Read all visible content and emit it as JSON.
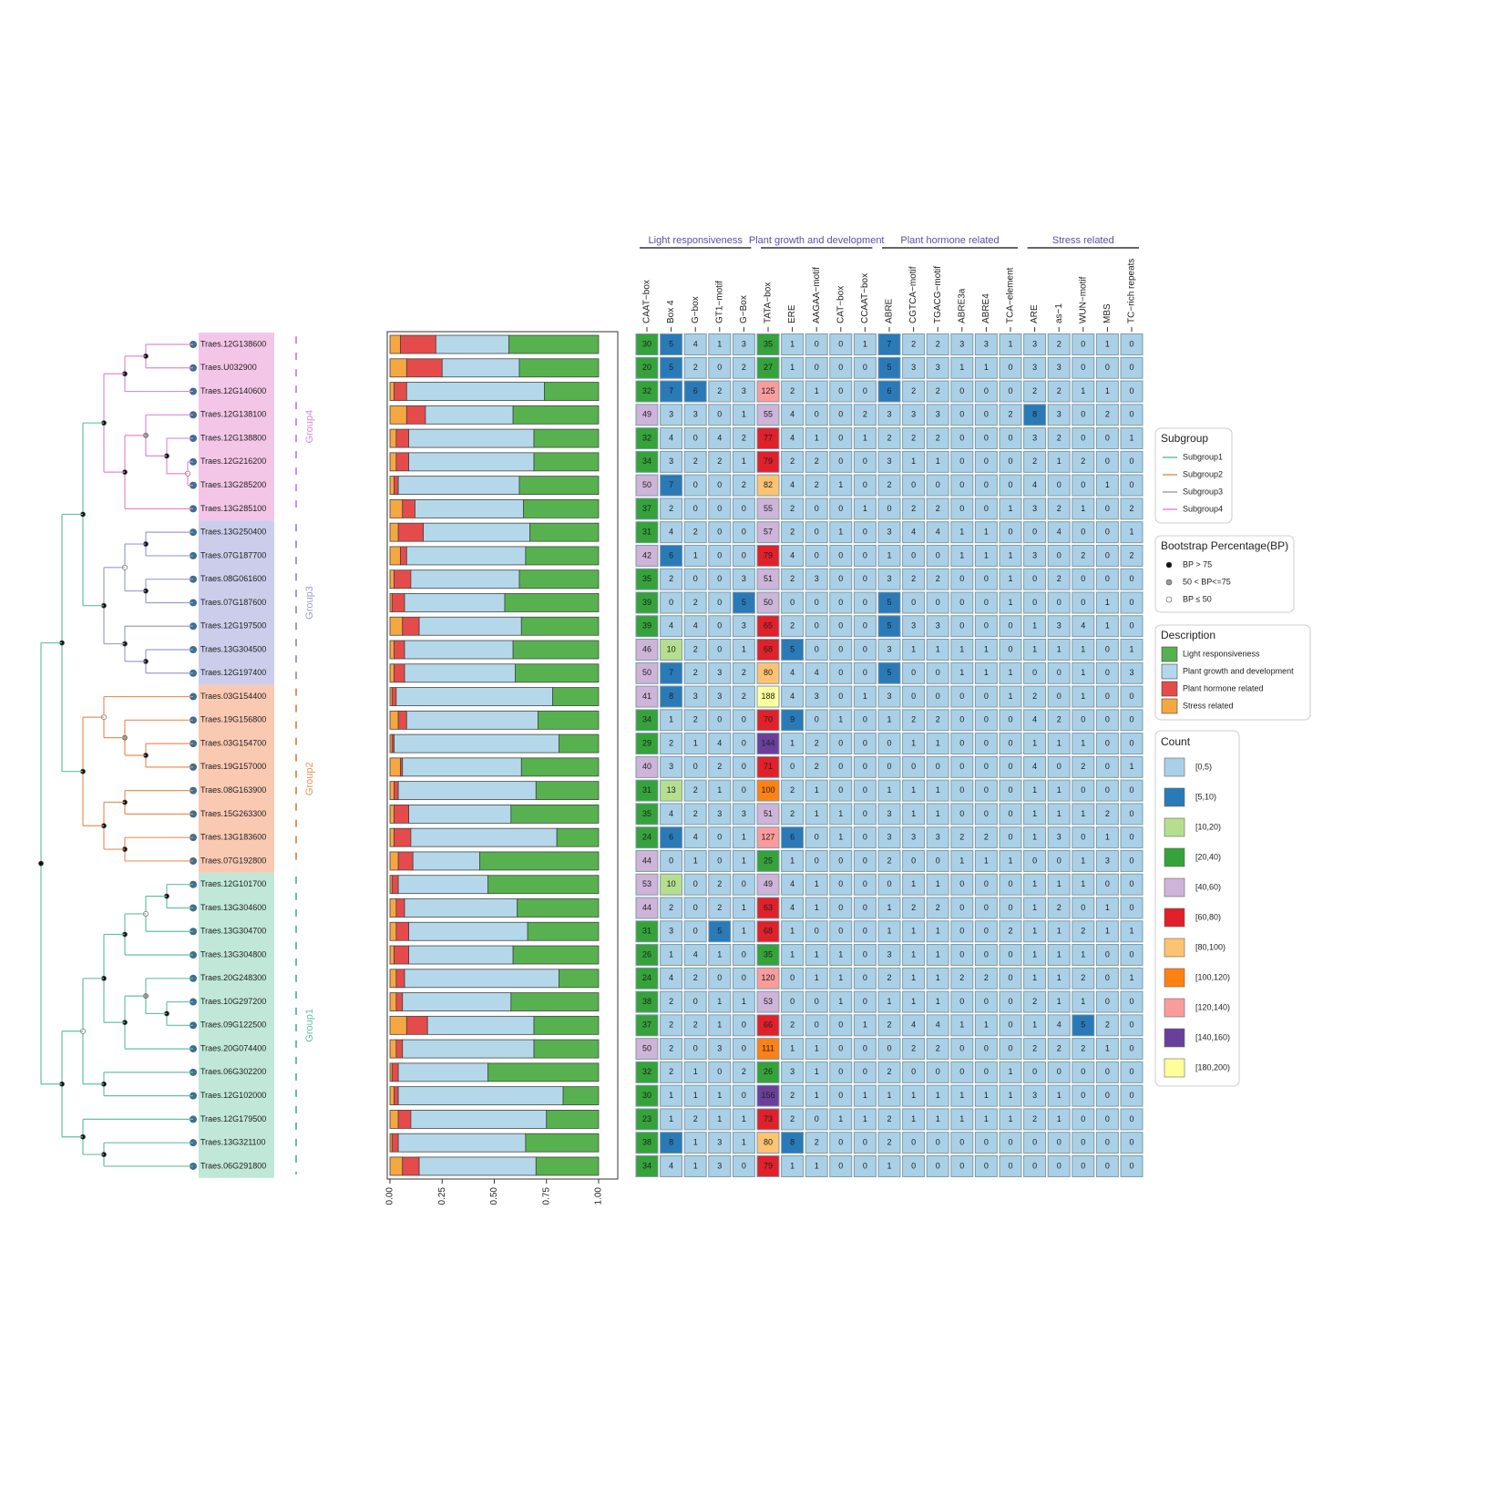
{
  "chart_data": {
    "type": "heatmap",
    "genes": [
      "Traes.12G138600",
      "Traes.U032900",
      "Traes.12G140600",
      "Traes.12G138100",
      "Traes.12G138800",
      "Traes.12G216200",
      "Traes.13G285200",
      "Traes.13G285100",
      "Traes.13G250400",
      "Traes.07G187700",
      "Traes.08G061600",
      "Traes.07G187600",
      "Traes.12G197500",
      "Traes.13G304500",
      "Traes.12G197400",
      "Traes.03G154400",
      "Traes.19G156800",
      "Traes.03G154700",
      "Traes.19G157000",
      "Traes.08G163900",
      "Traes.15G263300",
      "Traes.13G183600",
      "Traes.07G192800",
      "Traes.12G101700",
      "Traes.13G304600",
      "Traes.13G304700",
      "Traes.13G304800",
      "Traes.20G248300",
      "Traes.10G297200",
      "Traes.09G122500",
      "Traes.20G074400",
      "Traes.06G302200",
      "Traes.12G102000",
      "Traes.12G179500",
      "Traes.13G321100",
      "Traes.06G291800"
    ],
    "groups": [
      {
        "name": "Group4",
        "color": "#e08ad0",
        "band": "#f3c6e8"
      },
      {
        "name": "Group3",
        "color": "#9b9cd2",
        "band": "#cbcdea"
      },
      {
        "name": "Group2",
        "color": "#e8915a",
        "band": "#f9c9b2"
      },
      {
        "name": "Group1",
        "color": "#63c2a0",
        "band": "#c0e7d7"
      }
    ],
    "bar": {
      "legend_title": "Description",
      "series": [
        {
          "name": "Stress related",
          "color": "#f5a742",
          "values": [
            0.05,
            0.08,
            0.02,
            0.08,
            0.03,
            0.03,
            0.02,
            0.06,
            0.04,
            0.05,
            0.02,
            0.01,
            0.06,
            0.02,
            0.02,
            0.01,
            0.04,
            0.01,
            0.05,
            0.02,
            0.02,
            0.02,
            0.04,
            0.01,
            0.03,
            0.03,
            0.02,
            0.03,
            0.03,
            0.08,
            0.03,
            0.01,
            0.02,
            0.04,
            0.01,
            0.06
          ]
        },
        {
          "name": "Plant hormone related",
          "color": "#e54b4b",
          "values": [
            0.17,
            0.17,
            0.06,
            0.09,
            0.06,
            0.06,
            0.02,
            0.06,
            0.12,
            0.03,
            0.08,
            0.06,
            0.08,
            0.05,
            0.05,
            0.02,
            0.04,
            0.01,
            0.01,
            0.02,
            0.07,
            0.08,
            0.07,
            0.03,
            0.04,
            0.06,
            0.07,
            0.04,
            0.03,
            0.1,
            0.03,
            0.03,
            0.02,
            0.06,
            0.03,
            0.08
          ]
        },
        {
          "name": "Plant growth and development",
          "color": "#b4d8ea",
          "values": [
            0.35,
            0.37,
            0.66,
            0.42,
            0.6,
            0.6,
            0.58,
            0.52,
            0.51,
            0.57,
            0.52,
            0.48,
            0.49,
            0.52,
            0.53,
            0.75,
            0.63,
            0.79,
            0.57,
            0.66,
            0.49,
            0.7,
            0.32,
            0.43,
            0.54,
            0.57,
            0.5,
            0.74,
            0.52,
            0.51,
            0.63,
            0.43,
            0.79,
            0.65,
            0.61,
            0.56
          ]
        },
        {
          "name": "Light responsiveness",
          "color": "#58b14f",
          "values": [
            0.43,
            0.38,
            0.26,
            0.41,
            0.31,
            0.31,
            0.38,
            0.36,
            0.33,
            0.35,
            0.38,
            0.45,
            0.37,
            0.41,
            0.4,
            0.22,
            0.29,
            0.19,
            0.37,
            0.3,
            0.42,
            0.2,
            0.57,
            0.53,
            0.39,
            0.34,
            0.41,
            0.19,
            0.42,
            0.31,
            0.31,
            0.53,
            0.17,
            0.25,
            0.35,
            0.3
          ]
        }
      ],
      "xlim": [
        0,
        1
      ],
      "xticks": [
        {
          "value": 0,
          "label": "0.00"
        },
        {
          "value": 0.25,
          "label": "0.25"
        },
        {
          "value": 0.5,
          "label": "0.50"
        },
        {
          "value": 0.75,
          "label": "0.75"
        },
        {
          "value": 1,
          "label": "1.00"
        }
      ]
    },
    "heatmap": {
      "column_groups": [
        "Light responsiveness",
        "Plant growth and development",
        "Plant hormone related",
        "Stress related"
      ],
      "columns": [
        "CAAT−box",
        "Box 4",
        "G−box",
        "GT1−motif",
        "G−Box",
        "TATA−box",
        "ERE",
        "AAGAA−motif",
        "CAT−box",
        "CCAAT−box",
        "ABRE",
        "CGTCA−motif",
        "TGACG−motif",
        "ABRE3a",
        "ABRE4",
        "TCA−element",
        "ARE",
        "as−1",
        "WUN−motif",
        "MBS",
        "TC−rich repeats"
      ],
      "values": [
        [
          30,
          5,
          4,
          1,
          3,
          35,
          1,
          0,
          0,
          1,
          7,
          2,
          2,
          3,
          3,
          1,
          3,
          2,
          0,
          1,
          0
        ],
        [
          20,
          5,
          2,
          0,
          2,
          27,
          1,
          0,
          0,
          0,
          5,
          3,
          3,
          1,
          1,
          0,
          3,
          3,
          0,
          0,
          0
        ],
        [
          32,
          7,
          6,
          2,
          3,
          125,
          2,
          1,
          0,
          0,
          6,
          2,
          2,
          0,
          0,
          0,
          2,
          2,
          1,
          1,
          0
        ],
        [
          49,
          3,
          3,
          0,
          1,
          55,
          4,
          0,
          0,
          2,
          3,
          3,
          3,
          0,
          0,
          2,
          8,
          3,
          0,
          2,
          0
        ],
        [
          32,
          4,
          0,
          4,
          2,
          77,
          4,
          1,
          0,
          1,
          2,
          2,
          2,
          0,
          0,
          0,
          3,
          2,
          0,
          0,
          1
        ],
        [
          34,
          3,
          2,
          2,
          1,
          79,
          2,
          2,
          0,
          0,
          3,
          1,
          1,
          0,
          0,
          0,
          2,
          1,
          2,
          0,
          0
        ],
        [
          50,
          7,
          0,
          0,
          2,
          82,
          4,
          2,
          1,
          0,
          2,
          0,
          0,
          0,
          0,
          0,
          4,
          0,
          0,
          1,
          0
        ],
        [
          37,
          2,
          0,
          0,
          0,
          55,
          2,
          0,
          0,
          1,
          0,
          2,
          2,
          0,
          0,
          1,
          3,
          2,
          1,
          0,
          2
        ],
        [
          31,
          4,
          2,
          0,
          0,
          57,
          2,
          0,
          1,
          0,
          3,
          4,
          4,
          1,
          1,
          0,
          0,
          4,
          0,
          0,
          1
        ],
        [
          42,
          6,
          1,
          0,
          0,
          79,
          4,
          0,
          0,
          0,
          1,
          0,
          0,
          1,
          1,
          1,
          3,
          0,
          2,
          0,
          2
        ],
        [
          35,
          2,
          0,
          0,
          3,
          51,
          2,
          3,
          0,
          0,
          3,
          2,
          2,
          0,
          0,
          1,
          0,
          2,
          0,
          0,
          0
        ],
        [
          39,
          0,
          2,
          0,
          5,
          50,
          0,
          0,
          0,
          0,
          5,
          0,
          0,
          0,
          0,
          1,
          0,
          0,
          0,
          1,
          0
        ],
        [
          39,
          4,
          4,
          0,
          3,
          65,
          2,
          0,
          0,
          0,
          5,
          3,
          3,
          0,
          0,
          0,
          1,
          3,
          4,
          1,
          0
        ],
        [
          46,
          10,
          2,
          0,
          1,
          68,
          5,
          0,
          0,
          0,
          3,
          1,
          1,
          1,
          1,
          0,
          1,
          1,
          1,
          0,
          1
        ],
        [
          50,
          7,
          2,
          3,
          2,
          80,
          4,
          4,
          0,
          0,
          5,
          0,
          0,
          1,
          1,
          1,
          0,
          0,
          1,
          0,
          3
        ],
        [
          41,
          8,
          3,
          3,
          2,
          188,
          4,
          3,
          0,
          1,
          3,
          0,
          0,
          0,
          0,
          1,
          2,
          0,
          1,
          0,
          0
        ],
        [
          34,
          1,
          2,
          0,
          0,
          70,
          9,
          0,
          1,
          0,
          1,
          2,
          2,
          0,
          0,
          0,
          4,
          2,
          0,
          0,
          0
        ],
        [
          29,
          2,
          1,
          4,
          0,
          144,
          1,
          2,
          0,
          0,
          0,
          1,
          1,
          0,
          0,
          0,
          1,
          1,
          1,
          0,
          0
        ],
        [
          40,
          3,
          0,
          2,
          0,
          71,
          0,
          2,
          0,
          0,
          0,
          0,
          0,
          0,
          0,
          0,
          4,
          0,
          2,
          0,
          1
        ],
        [
          31,
          13,
          2,
          1,
          0,
          100,
          2,
          1,
          0,
          0,
          1,
          1,
          1,
          0,
          0,
          0,
          1,
          1,
          0,
          0,
          0
        ],
        [
          35,
          4,
          2,
          3,
          3,
          51,
          2,
          1,
          1,
          0,
          3,
          1,
          1,
          0,
          0,
          0,
          1,
          1,
          1,
          2,
          0
        ],
        [
          24,
          6,
          4,
          0,
          1,
          127,
          6,
          0,
          1,
          0,
          3,
          3,
          3,
          2,
          2,
          0,
          1,
          3,
          0,
          1,
          0
        ],
        [
          44,
          0,
          1,
          0,
          1,
          25,
          1,
          0,
          0,
          0,
          2,
          0,
          0,
          1,
          1,
          1,
          0,
          0,
          1,
          3,
          0
        ],
        [
          53,
          10,
          0,
          2,
          0,
          49,
          4,
          1,
          0,
          0,
          0,
          1,
          1,
          0,
          0,
          0,
          1,
          1,
          1,
          0,
          0
        ],
        [
          44,
          2,
          0,
          2,
          1,
          63,
          4,
          1,
          0,
          0,
          1,
          2,
          2,
          0,
          0,
          0,
          1,
          2,
          0,
          1,
          0
        ],
        [
          31,
          3,
          0,
          5,
          1,
          68,
          1,
          0,
          0,
          0,
          1,
          1,
          1,
          0,
          0,
          2,
          1,
          1,
          2,
          1,
          1
        ],
        [
          26,
          1,
          4,
          1,
          0,
          35,
          1,
          1,
          1,
          0,
          3,
          1,
          1,
          0,
          0,
          0,
          1,
          1,
          1,
          0,
          0
        ],
        [
          24,
          4,
          2,
          0,
          0,
          120,
          0,
          1,
          1,
          0,
          2,
          1,
          1,
          2,
          2,
          0,
          1,
          1,
          2,
          0,
          1
        ],
        [
          38,
          2,
          0,
          1,
          1,
          53,
          0,
          0,
          1,
          0,
          1,
          1,
          1,
          0,
          0,
          0,
          2,
          1,
          1,
          0,
          0
        ],
        [
          37,
          2,
          2,
          1,
          0,
          66,
          2,
          0,
          0,
          1,
          2,
          4,
          4,
          1,
          1,
          0,
          1,
          4,
          5,
          2,
          0
        ],
        [
          50,
          2,
          0,
          3,
          0,
          111,
          1,
          1,
          0,
          0,
          0,
          2,
          2,
          0,
          0,
          0,
          2,
          2,
          2,
          1,
          0
        ],
        [
          32,
          2,
          1,
          0,
          2,
          26,
          3,
          1,
          0,
          0,
          2,
          0,
          0,
          0,
          0,
          1,
          0,
          0,
          0,
          0,
          0
        ],
        [
          30,
          1,
          1,
          1,
          0,
          156,
          2,
          1,
          0,
          1,
          1,
          1,
          1,
          1,
          1,
          1,
          3,
          1,
          0,
          0,
          0
        ],
        [
          23,
          1,
          2,
          1,
          1,
          73,
          2,
          0,
          1,
          1,
          2,
          1,
          1,
          1,
          1,
          1,
          2,
          1,
          0,
          0,
          0
        ],
        [
          38,
          8,
          1,
          3,
          1,
          80,
          8,
          2,
          0,
          0,
          2,
          0,
          0,
          0,
          0,
          0,
          0,
          0,
          0,
          0,
          0
        ],
        [
          34,
          4,
          1,
          3,
          0,
          79,
          1,
          1,
          0,
          0,
          1,
          0,
          0,
          0,
          0,
          0,
          0,
          0,
          0,
          0,
          0
        ]
      ],
      "legend_title": "Count",
      "bins": [
        {
          "label": "[0,5)",
          "color": "#a9d0e6"
        },
        {
          "label": "[5,10)",
          "color": "#2a7ab8"
        },
        {
          "label": "[10,20)",
          "color": "#b5df8e"
        },
        {
          "label": "[20,40)",
          "color": "#35a23a"
        },
        {
          "label": "[40,60)",
          "color": "#cdb4d8"
        },
        {
          "label": "[60,80)",
          "color": "#e0202a"
        },
        {
          "label": "[80,100)",
          "color": "#fdc272"
        },
        {
          "label": "[100,120)",
          "color": "#ff8112"
        },
        {
          "label": "[120,140)",
          "color": "#f99c9b"
        },
        {
          "label": "[140,160)",
          "color": "#6a3f9b"
        },
        {
          "label": "[180,200)",
          "color": "#ffff9c"
        }
      ]
    },
    "subgroup_legend": {
      "title": "Subgroup",
      "items": [
        {
          "name": "Subgroup1",
          "color": "#63c2a0"
        },
        {
          "name": "Subgroup2",
          "color": "#e8915a"
        },
        {
          "name": "Subgroup3",
          "color": "#9b9cd2"
        },
        {
          "name": "Subgroup4",
          "color": "#e08ad0"
        }
      ]
    },
    "bootstrap_legend": {
      "title": "Bootstrap Percentage(BP)",
      "items": [
        {
          "name": "BP > 75",
          "fill": "#111"
        },
        {
          "name": "50 < BP<=75",
          "fill": "#999"
        },
        {
          "name": "BP ≤ 50",
          "fill": "#fff"
        }
      ]
    }
  }
}
